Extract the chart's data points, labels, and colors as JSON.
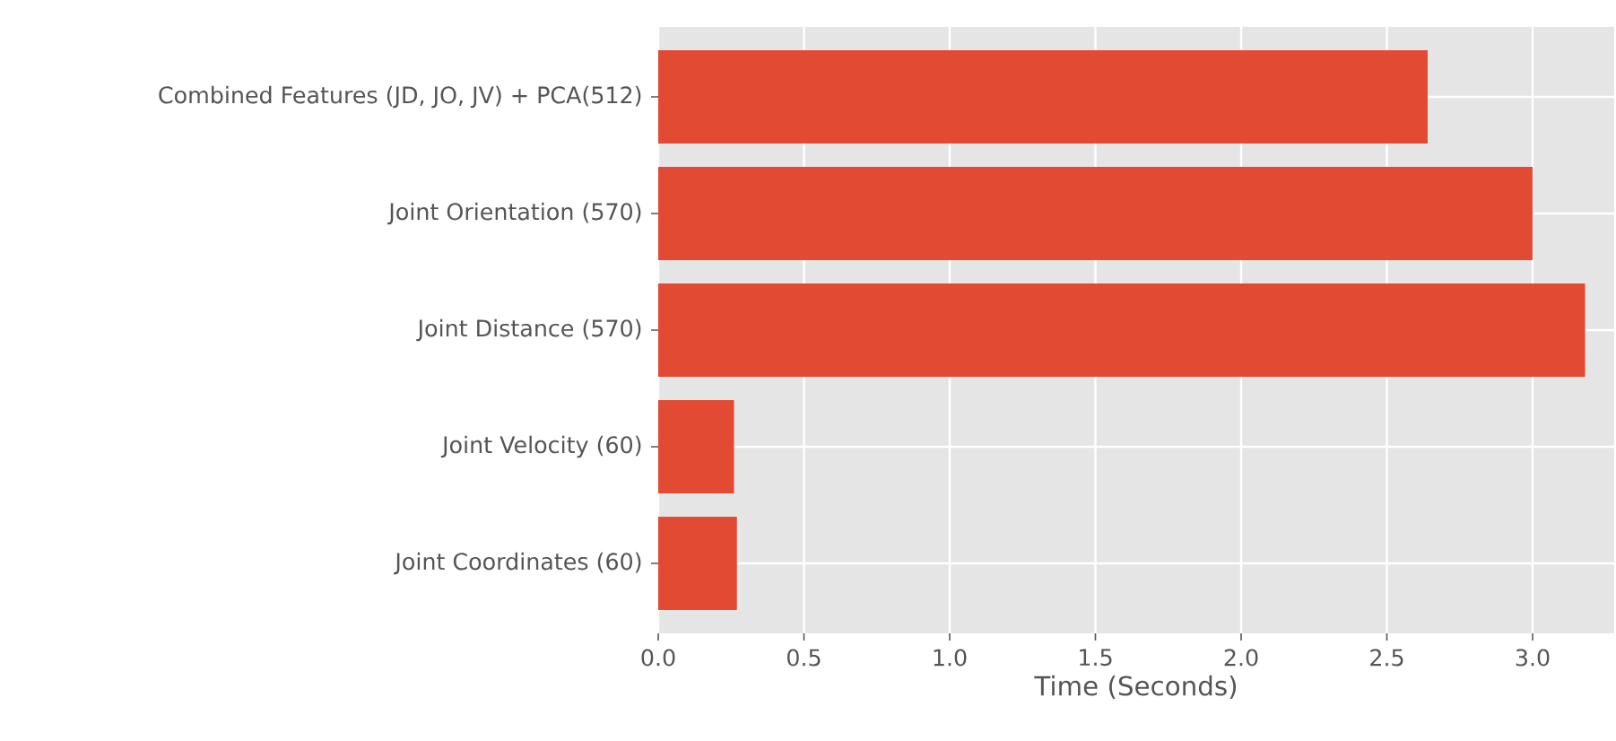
{
  "chart_data": {
    "type": "bar",
    "orientation": "horizontal",
    "categories": [
      "Combined Features (JD, JO, JV) + PCA(512)",
      "Joint Orientation (570)",
      "Joint Distance (570)",
      "Joint Velocity (60)",
      "Joint Coordinates (60)"
    ],
    "values": [
      2.64,
      3.0,
      3.18,
      0.26,
      0.27
    ],
    "color": "#e24a33",
    "xlabel": "Time (Seconds)",
    "xlim": [
      0,
      3.28
    ],
    "xticks": [
      {
        "value": 0,
        "label": "0.0"
      },
      {
        "value": 0.5,
        "label": "0.5"
      },
      {
        "value": 1,
        "label": "1.0"
      },
      {
        "value": 1.5,
        "label": "1.5"
      },
      {
        "value": 2,
        "label": "2.0"
      },
      {
        "value": 2.5,
        "label": "2.5"
      },
      {
        "value": 3,
        "label": "3.0"
      }
    ],
    "grid": true
  }
}
